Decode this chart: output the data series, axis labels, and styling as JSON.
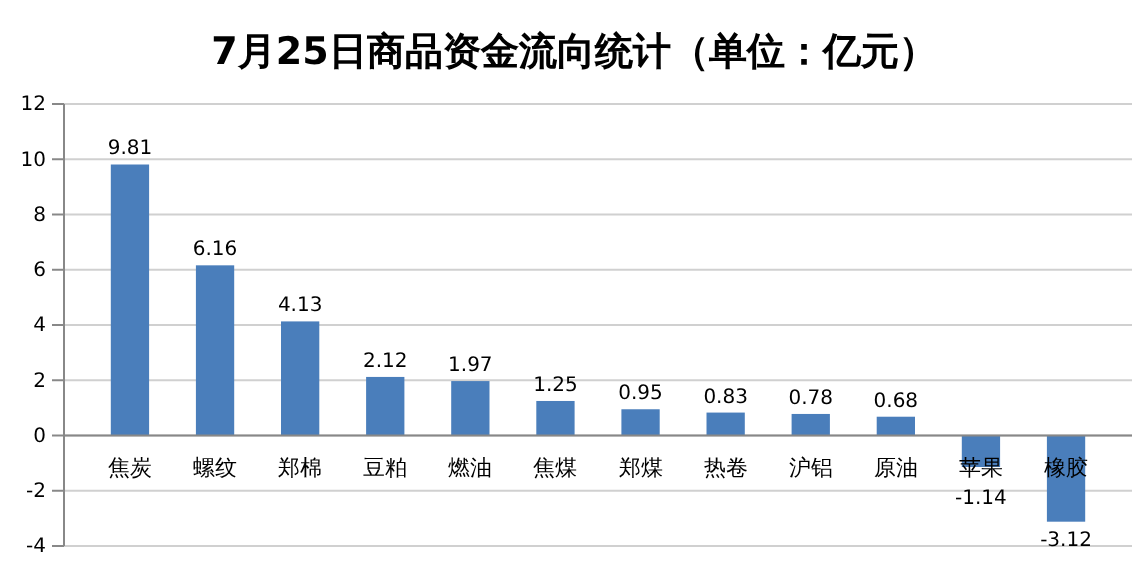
{
  "chart_data": {
    "type": "bar",
    "title": "7月25日商品资金流向统计（单位：亿元）",
    "categories": [
      "焦炭",
      "螺纹",
      "郑棉",
      "豆粕",
      "燃油",
      "焦煤",
      "郑煤",
      "热卷",
      "沪铝",
      "原油",
      "苹果",
      "橡胶"
    ],
    "values": [
      9.81,
      6.16,
      4.13,
      2.12,
      1.97,
      1.25,
      0.95,
      0.83,
      0.78,
      0.68,
      -1.14,
      -3.12
    ],
    "color": "#4a7ebb",
    "ylim": [
      -4,
      12
    ],
    "yticks": [
      -4,
      -2,
      0,
      2,
      4,
      6,
      8,
      10,
      12
    ],
    "grid": "y",
    "data_labels": true
  }
}
